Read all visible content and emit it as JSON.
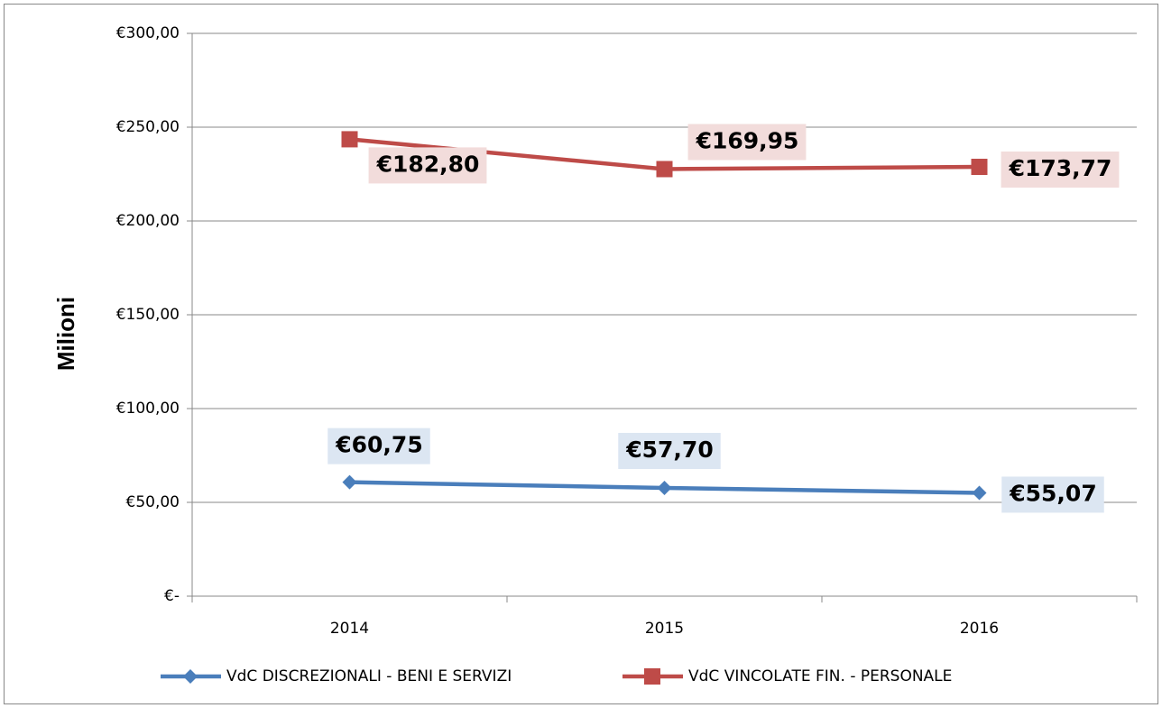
{
  "chart_data": {
    "type": "line",
    "stacked": true,
    "y_label": "Milioni",
    "categories": [
      "2014",
      "2015",
      "2016"
    ],
    "series": [
      {
        "name": "VdC DISCREZIONALI - BENI E SERVIZI",
        "color": "#4a7ebb",
        "marker": "diamond",
        "values": [
          60.75,
          57.7,
          55.07
        ],
        "value_labels": [
          "€60,75",
          "€57,70",
          "€55,07"
        ],
        "label_background": "#dce6f2"
      },
      {
        "name": "VdC VINCOLATE FIN. - PERSONALE",
        "color": "#be4b48",
        "marker": "square",
        "values": [
          182.8,
          169.95,
          173.77
        ],
        "value_labels": [
          "€182,80",
          "€169,95",
          "€173,77"
        ],
        "label_background": "#f2dcdb"
      }
    ],
    "ylim": [
      0,
      300
    ],
    "yticks": [
      {
        "value": 0,
        "label": "€-"
      },
      {
        "value": 50,
        "label": "€50,00"
      },
      {
        "value": 100,
        "label": "€100,00"
      },
      {
        "value": 150,
        "label": "€150,00"
      },
      {
        "value": 200,
        "label": "€200,00"
      },
      {
        "value": 250,
        "label": "€250,00"
      },
      {
        "value": 300,
        "label": "€300,00"
      }
    ],
    "grid": true,
    "legend": "bottom"
  }
}
